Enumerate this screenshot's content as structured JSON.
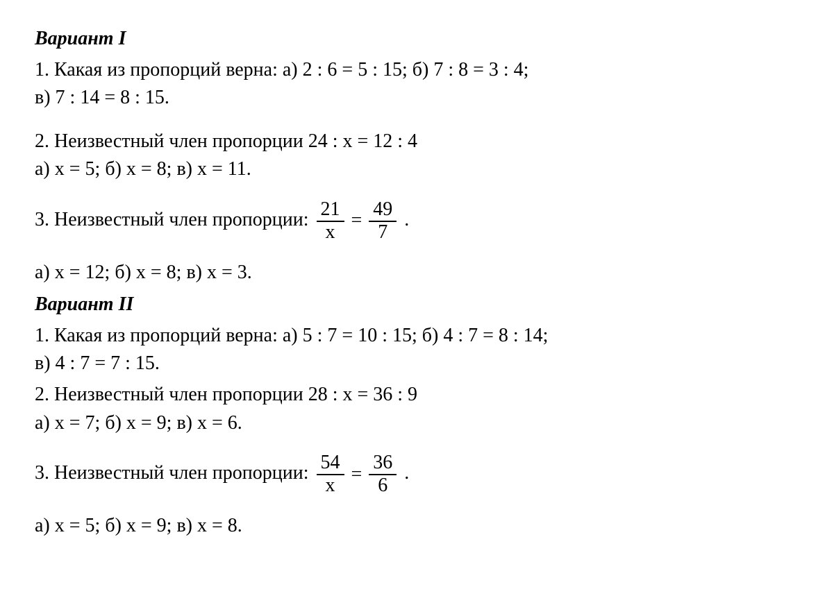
{
  "variant1": {
    "heading": "Вариант I",
    "q1": {
      "intro": "1. Какая из пропорций верна: ",
      "a": "а) 2 : 6 = 5 : 15; ",
      "b": "б) 7 : 8 = 3 : 4;",
      "c": "в) 7 : 14 = 8 : 15."
    },
    "q2": {
      "line1": "2. Неизвестный член пропорции 24 : x = 12 : 4",
      "line2": "а) x = 5; б) x = 8; в) x = 11."
    },
    "q3": {
      "intro": "3. Неизвестный член пропорции:  ",
      "frac1_num": "21",
      "frac1_den": "x",
      "eq": "=",
      "frac2_num": "49",
      "frac2_den": "7",
      "tail": " .",
      "answers": "а) x = 12; б) x = 8; в) x = 3."
    }
  },
  "variant2": {
    "heading": "Вариант  II",
    "q1": {
      "intro": "1. Какая из пропорций верна: ",
      "a": "а) 5 : 7 = 10 : 15; ",
      "b": "б) 4 : 7 = 8 : 14;",
      "c": "в) 4 : 7 = 7 : 15."
    },
    "q2": {
      "line1": "2. Неизвестный член пропорции 28 : x = 36 : 9",
      "line2": "а) x = 7; б) x = 9; в) x = 6."
    },
    "q3": {
      "intro": "3. Неизвестный член пропорции:  ",
      "frac1_num": "54",
      "frac1_den": "x",
      "eq": "=",
      "frac2_num": "36",
      "frac2_den": "6",
      "tail": " .",
      "answers": "а) x = 5; б) x = 9; в) x = 8."
    }
  }
}
